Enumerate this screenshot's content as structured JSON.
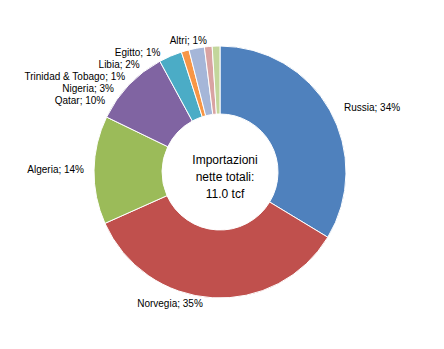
{
  "chart_data": {
    "type": "pie",
    "title": "Importazioni\nnette totali:\n11.0 tcf",
    "categories": [
      "Russia",
      "Norvegia",
      "Algeria",
      "Qatar",
      "Nigeria",
      "Trinidad & Tobago",
      "Libia",
      "Egitto",
      "Altri"
    ],
    "values": [
      34,
      35,
      14,
      10,
      3,
      1,
      2,
      1,
      1
    ],
    "value_labels": [
      "Russia; 34%",
      "Norvegia; 35%",
      "Algeria; 14%",
      "Qatar; 10%",
      "Nigeria; 3%",
      "Trinidad & Tobago; 1%",
      "Libia; 2%",
      "Egitto; 1%",
      "Altri; 1%"
    ],
    "colors": [
      "#4f81bd",
      "#c0504d",
      "#9bbb59",
      "#8064a2",
      "#4bacc6",
      "#f79646",
      "#a5b6d8",
      "#d9a3a2",
      "#c3d69b"
    ],
    "data_labels": true
  }
}
